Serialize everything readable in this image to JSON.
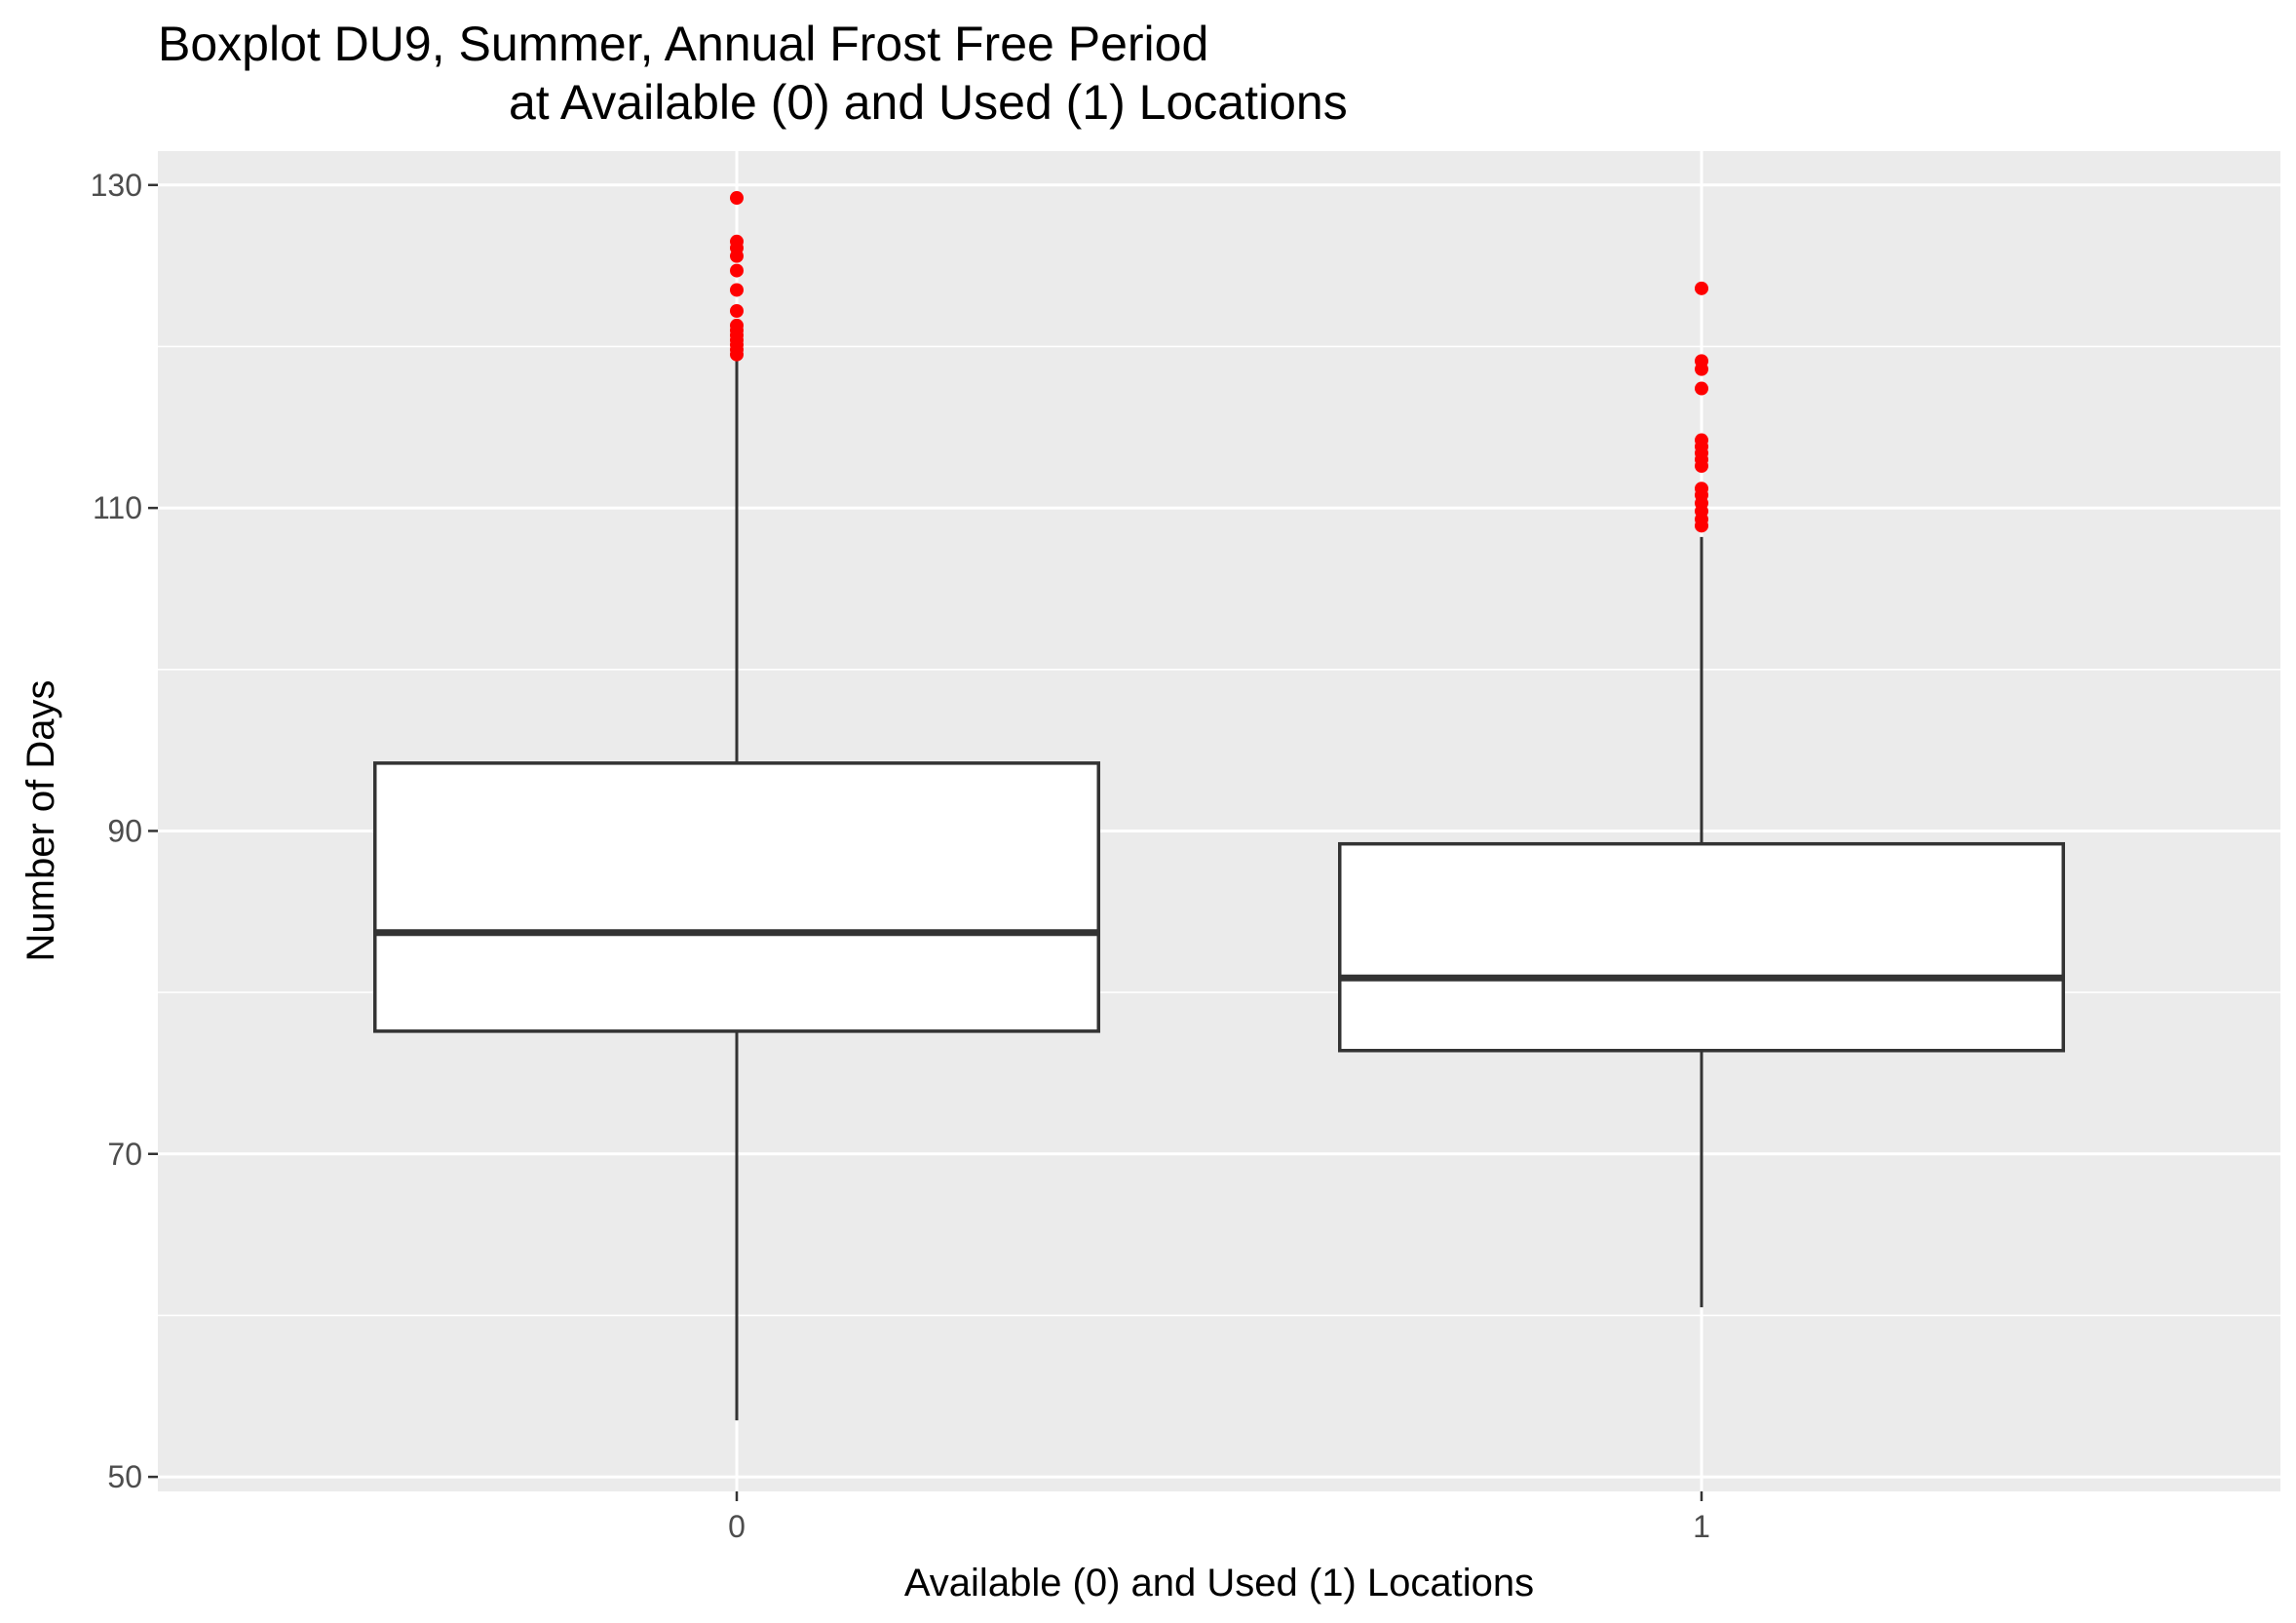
{
  "chart_data": {
    "type": "boxplot",
    "title_line1": "Boxplot DU9, Summer, Annual Frost Free Period",
    "title_line2": "at Available (0) and Used (1) Locations",
    "xlabel": "Available (0) and Used (1) Locations",
    "ylabel": "Number of Days",
    "ylim": [
      49.1,
      132.1
    ],
    "yticks": [
      50,
      70,
      90,
      110,
      130
    ],
    "ytick_labels": [
      "50",
      "70",
      "90",
      "110",
      "130"
    ],
    "grid": true,
    "categories": [
      "0",
      "1"
    ],
    "boxes": [
      {
        "category": "0",
        "whisker_low": 53.5,
        "q1": 77.6,
        "median": 83.7,
        "q3": 94.2,
        "whisker_high": 119.4,
        "outliers": [
          119.5,
          119.8,
          120.1,
          120.4,
          120.7,
          121.0,
          121.3,
          122.2,
          123.5,
          124.7,
          125.6,
          126.1,
          126.5,
          129.2
        ]
      },
      {
        "category": "1",
        "whisker_low": 60.5,
        "q1": 76.4,
        "median": 80.9,
        "q3": 89.2,
        "whisker_high": 108.2,
        "outliers": [
          108.9,
          109.3,
          109.8,
          110.3,
          110.8,
          111.2,
          112.6,
          113.0,
          113.4,
          113.8,
          114.2,
          117.4,
          118.6,
          119.1,
          123.6
        ]
      }
    ],
    "colors": {
      "panel_background": "#ebebeb",
      "grid_line": "#ffffff",
      "box_fill": "#ffffff",
      "box_stroke": "#333333",
      "outlier": "#ff0000"
    }
  }
}
